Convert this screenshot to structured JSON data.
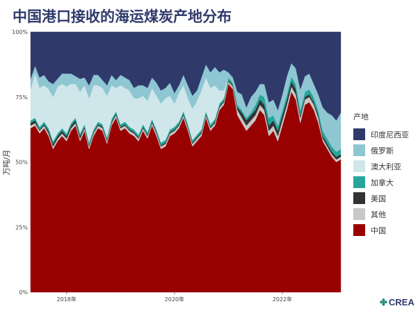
{
  "chart_data": {
    "type": "area",
    "stacked": true,
    "normalized": true,
    "title": "中国港口接收的海运煤炭产地分布",
    "ylabel": "万吨/月",
    "xlabel": "",
    "ylim": [
      0,
      100
    ],
    "y_ticks": [
      "0%",
      "25%",
      "50%",
      "75%",
      "100%"
    ],
    "x_ticks": [
      "2018年",
      "2020年",
      "2022年"
    ],
    "x": [
      "2017-05",
      "2017-06",
      "2017-07",
      "2017-08",
      "2017-09",
      "2017-10",
      "2017-11",
      "2017-12",
      "2018-01",
      "2018-02",
      "2018-03",
      "2018-04",
      "2018-05",
      "2018-06",
      "2018-07",
      "2018-08",
      "2018-09",
      "2018-10",
      "2018-11",
      "2018-12",
      "2019-01",
      "2019-02",
      "2019-03",
      "2019-04",
      "2019-05",
      "2019-06",
      "2019-07",
      "2019-08",
      "2019-09",
      "2019-10",
      "2019-11",
      "2019-12",
      "2020-01",
      "2020-02",
      "2020-03",
      "2020-04",
      "2020-05",
      "2020-06",
      "2020-07",
      "2020-08",
      "2020-09",
      "2020-10",
      "2020-11",
      "2020-12",
      "2021-01",
      "2021-02",
      "2021-03",
      "2021-04",
      "2021-05",
      "2021-06",
      "2021-07",
      "2021-08",
      "2021-09",
      "2021-10",
      "2021-11",
      "2021-12",
      "2022-01",
      "2022-02",
      "2022-03",
      "2022-04",
      "2022-05",
      "2022-06",
      "2022-07",
      "2022-08",
      "2022-09",
      "2022-10",
      "2022-11",
      "2022-12",
      "2023-01",
      "2023-02"
    ],
    "legend_title": "产地",
    "legend_position": "right",
    "series": [
      {
        "name": "中国",
        "color": "#990000",
        "values": [
          63,
          64,
          61,
          63,
          60,
          55,
          58,
          60,
          58,
          62,
          64,
          58,
          62,
          55,
          60,
          63,
          62,
          57,
          64,
          67,
          62,
          63,
          61,
          60,
          58,
          62,
          59,
          64,
          60,
          55,
          56,
          60,
          61,
          63,
          67,
          62,
          56,
          58,
          60,
          67,
          62,
          64,
          70,
          72,
          80,
          78,
          68,
          65,
          62,
          64,
          66,
          70,
          68,
          60,
          62,
          58,
          64,
          70,
          77,
          74,
          65,
          72,
          73,
          70,
          65,
          58,
          55,
          52,
          50,
          51
        ]
      },
      {
        "name": "其他",
        "color": "#c8c8c8",
        "values": [
          1,
          1,
          1,
          1,
          1,
          1,
          1,
          1,
          1,
          1,
          1,
          1,
          1,
          1,
          1,
          1,
          1,
          1,
          1,
          1,
          1,
          1,
          1,
          1,
          1,
          1,
          1,
          1,
          1,
          1,
          1,
          1,
          1,
          1,
          1,
          1,
          1,
          1,
          1,
          1,
          1,
          1,
          1,
          1,
          1,
          1,
          2,
          2,
          2,
          2,
          2,
          2,
          2,
          2,
          2,
          2,
          2,
          2,
          2,
          2,
          2,
          2,
          2,
          2,
          2,
          1,
          1,
          1,
          1,
          1
        ]
      },
      {
        "name": "美国",
        "color": "#333333",
        "values": [
          1,
          1,
          0.5,
          0.5,
          1,
          1,
          1,
          1,
          1,
          1,
          1,
          1,
          0.5,
          0.5,
          0.5,
          0.5,
          0.5,
          0.5,
          0.5,
          0.5,
          0.5,
          0.5,
          0.5,
          0.5,
          0.5,
          0.5,
          0.5,
          0.5,
          0.5,
          0.5,
          0.5,
          0.5,
          0.5,
          0.5,
          0.5,
          0.5,
          0.5,
          0.5,
          0.5,
          0.5,
          0.5,
          0.5,
          0.5,
          0.5,
          0.5,
          0.5,
          1,
          2,
          2,
          2,
          2,
          2,
          2,
          2,
          2,
          2,
          2,
          2,
          2,
          2,
          1,
          1,
          1,
          1,
          1,
          1,
          1,
          1,
          1,
          1
        ]
      },
      {
        "name": "加拿大",
        "color": "#26a69a",
        "values": [
          1,
          1,
          1,
          1,
          1,
          1,
          1,
          1,
          1,
          1,
          1,
          1,
          1,
          1,
          1,
          1,
          1,
          1,
          1,
          1,
          1,
          1,
          1,
          1,
          1,
          1,
          1,
          1,
          1,
          1,
          1,
          1,
          1,
          1,
          1,
          1,
          1,
          1,
          1,
          1,
          1,
          1,
          1,
          1,
          1,
          1,
          1,
          1,
          1,
          1,
          2,
          2,
          3,
          3,
          2,
          2,
          2,
          2,
          2,
          2,
          2,
          2,
          2,
          2,
          2,
          2,
          2,
          2,
          2,
          2
        ]
      },
      {
        "name": "澳大利亚",
        "color": "#cfe6ea",
        "values": [
          12,
          17,
          15,
          14,
          15,
          17,
          18,
          17,
          18,
          15,
          13,
          16,
          15,
          17,
          17,
          14,
          14,
          16,
          13,
          9,
          15,
          13,
          14,
          12,
          14,
          11,
          12,
          12,
          13,
          15,
          16,
          13,
          9,
          11,
          10,
          10,
          12,
          13,
          15,
          13,
          14,
          13,
          5,
          3,
          0,
          0,
          0,
          0,
          0,
          0,
          0,
          0,
          0,
          0,
          0,
          0,
          0,
          0,
          0,
          0,
          0,
          0,
          0,
          0,
          0,
          0,
          0,
          0,
          0,
          0
        ]
      },
      {
        "name": "俄罗斯",
        "color": "#8ec6d2",
        "values": [
          4,
          3,
          4,
          4,
          3,
          5,
          3,
          4,
          5,
          4,
          3,
          5,
          3,
          5,
          4,
          4,
          3,
          4,
          4,
          3,
          4,
          4,
          4,
          4,
          5,
          4,
          5,
          4,
          5,
          5,
          4,
          5,
          4,
          3,
          4,
          5,
          5,
          4,
          5,
          5,
          6,
          7,
          7,
          8,
          2,
          2,
          5,
          6,
          4,
          6,
          5,
          4,
          5,
          6,
          6,
          6,
          6,
          7,
          5,
          6,
          8,
          6,
          6,
          5,
          6,
          9,
          10,
          12,
          12,
          14
        ]
      },
      {
        "name": "印度尼西亚",
        "color": "#2f3a6b",
        "values": [
          18,
          13,
          17.5,
          16.5,
          19,
          20,
          18,
          16,
          16,
          16,
          17,
          18,
          17.5,
          20.5,
          16.5,
          16.5,
          18.5,
          20.5,
          16.5,
          18.5,
          16.5,
          17.5,
          18.5,
          21.5,
          20.5,
          20.5,
          21.5,
          17.5,
          19.5,
          22.5,
          21.5,
          19.5,
          23.5,
          20.5,
          16.5,
          20.5,
          24.5,
          22.5,
          17.5,
          12.5,
          15.5,
          13.5,
          15.5,
          14.5,
          15.5,
          17.5,
          23,
          24,
          29,
          25,
          23,
          20,
          20,
          27,
          26,
          30,
          24,
          17,
          12,
          14,
          22,
          17,
          16,
          20,
          24,
          29,
          31,
          32,
          34,
          31
        ]
      }
    ]
  }
}
